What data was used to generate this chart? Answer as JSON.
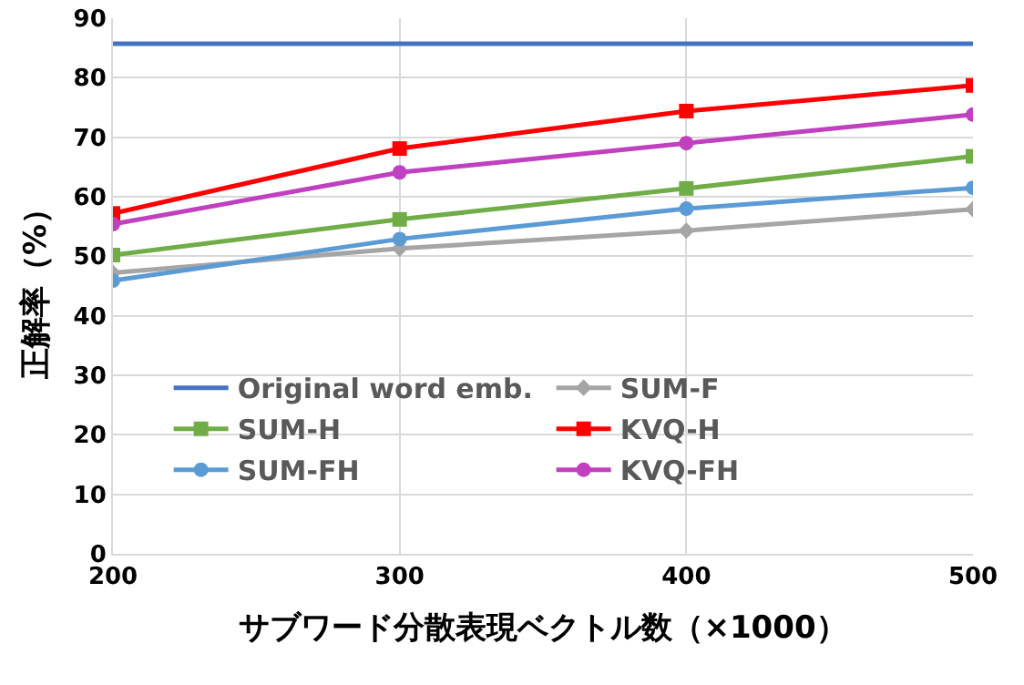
{
  "chart_data": {
    "type": "line",
    "xlabel": "サブワード分散表現ベクトル数（×1000）",
    "ylabel": "正解率（%）",
    "x": [
      200,
      300,
      400,
      500
    ],
    "xlim": [
      200,
      500
    ],
    "xticks": [
      200,
      300,
      400,
      500
    ],
    "ylim": [
      0,
      90
    ],
    "yticks": [
      0,
      10,
      20,
      30,
      40,
      50,
      60,
      70,
      80,
      90
    ],
    "grid": true,
    "legend": "bottom",
    "line_style": "solid",
    "series": [
      {
        "name": "Original word emb.",
        "color": "#4472c4",
        "marker": "none",
        "values": [
          85.7,
          85.7,
          85.7,
          85.7
        ]
      },
      {
        "name": "SUM-F",
        "color": "#a5a5a5",
        "marker": "diamond",
        "values": [
          47.2,
          51.3,
          54.3,
          57.9
        ]
      },
      {
        "name": "SUM-H",
        "color": "#70ad47",
        "marker": "square",
        "values": [
          50.2,
          56.2,
          61.4,
          66.8
        ]
      },
      {
        "name": "KVQ-H",
        "color": "#ff0000",
        "marker": "square",
        "values": [
          57.2,
          68.1,
          74.4,
          78.7
        ]
      },
      {
        "name": "SUM-FH",
        "color": "#5b9bd5",
        "marker": "circle",
        "values": [
          45.9,
          52.9,
          58.0,
          61.5
        ]
      },
      {
        "name": "KVQ-FH",
        "color": "#c040c0",
        "marker": "circle",
        "values": [
          55.4,
          64.1,
          69.0,
          73.8
        ]
      }
    ]
  }
}
